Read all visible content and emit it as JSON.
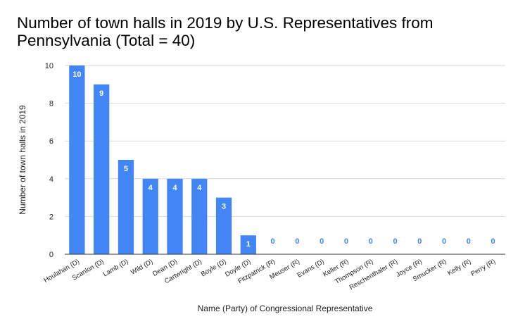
{
  "chart_data": {
    "type": "bar",
    "title": "Number of town halls in 2019 by U.S. Representatives from Pennsylvania (Total = 40)",
    "xlabel": "Name (Party) of Congressional Representative",
    "ylabel": "Number of town halls in 2019",
    "categories": [
      "Houlahan (D)",
      "Scanlon (D)",
      "Lamb (D)",
      "Wild (D)",
      "Dean (D)",
      "Cartwright (D)",
      "Boyle (D)",
      "Doyle (D)",
      "Fitzpatrick (R)",
      "Meuser (R)",
      "Evans (D)",
      "Keller (R)",
      "Thompson (R)",
      "Reschenthaler (R)",
      "Joyce (R)",
      "Smucker (R)",
      "Kelly (R)",
      "Perry (R)"
    ],
    "values": [
      10,
      9,
      5,
      4,
      4,
      4,
      3,
      1,
      0,
      0,
      0,
      0,
      0,
      0,
      0,
      0,
      0,
      0
    ],
    "ylim": [
      0,
      10
    ],
    "yticks": [
      0,
      2,
      4,
      6,
      8,
      10
    ],
    "grid": true,
    "legend": "none",
    "colors": {
      "bar": "#4285f4",
      "label_inside": "#ffffff",
      "label_outside": "#4285f4",
      "grid": "#d9d9d9",
      "axis": "#333333"
    }
  }
}
